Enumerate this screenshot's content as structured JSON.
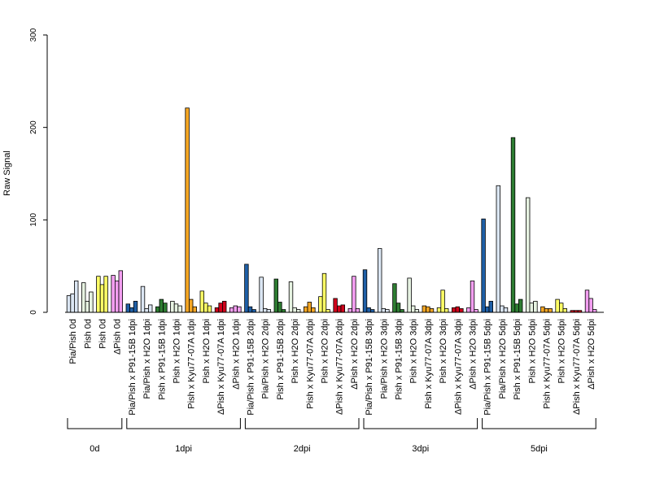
{
  "chart_data": {
    "type": "bar",
    "ylabel": "Raw Signal",
    "ylim": [
      0,
      300
    ],
    "yticks": [
      0,
      100,
      200,
      300
    ],
    "bars_per_category": 3,
    "categories": [
      {
        "label": "Pia/Pish 0d",
        "values": [
          18,
          20,
          34
        ],
        "colors": [
          "#dbe6f3",
          "#dbe6f3",
          "#dbe6f3"
        ]
      },
      {
        "label": "Pish 0d",
        "values": [
          32,
          12,
          22
        ],
        "colors": [
          "#e6f2e1",
          "#e6f2e1",
          "#e6f2e1"
        ]
      },
      {
        "label": "Pish 0d",
        "values": [
          39,
          30,
          39
        ],
        "colors": [
          "#ffff66",
          "#ffff66",
          "#ffff66"
        ]
      },
      {
        "label": "ΔPish 0d",
        "values": [
          40,
          34,
          45
        ],
        "colors": [
          "#f29ef0",
          "#f29ef0",
          "#f29ef0"
        ]
      },
      {
        "label": "Pia/Pish x P91-15B 1dpi",
        "values": [
          9,
          5,
          12
        ],
        "colors": [
          "#1f5fa6",
          "#1f5fa6",
          "#1f5fa6"
        ]
      },
      {
        "label": "Pia/Pish x H2O 1dpi",
        "values": [
          28,
          4,
          8
        ],
        "colors": [
          "#dbe6f3",
          "#dbe6f3",
          "#dbe6f3"
        ]
      },
      {
        "label": "Pish x P91-15B 1dpi",
        "values": [
          6,
          14,
          10
        ],
        "colors": [
          "#2e7d32",
          "#2e7d32",
          "#2e7d32"
        ]
      },
      {
        "label": "Pish x H2O 1dpi",
        "values": [
          12,
          9,
          7
        ],
        "colors": [
          "#e6f2e1",
          "#e6f2e1",
          "#e6f2e1"
        ]
      },
      {
        "label": "Pish x Kyu77-07A 1dpi",
        "values": [
          221,
          14,
          6
        ],
        "colors": [
          "#f5a623",
          "#f5a623",
          "#f5a623"
        ]
      },
      {
        "label": "Pish x H2O 1dpi",
        "values": [
          23,
          10,
          7
        ],
        "colors": [
          "#ffff66",
          "#ffff66",
          "#ffff66"
        ]
      },
      {
        "label": "ΔPish x Kyu77-07A 1dpi",
        "values": [
          5,
          10,
          12
        ],
        "colors": [
          "#d0021b",
          "#d0021b",
          "#d0021b"
        ]
      },
      {
        "label": "ΔPish x H2O 1dpi",
        "values": [
          5,
          7,
          6
        ],
        "colors": [
          "#f29ef0",
          "#f29ef0",
          "#f29ef0"
        ]
      },
      {
        "label": "Pia/Pish x P91-15B 2dpi",
        "values": [
          52,
          6,
          3
        ],
        "colors": [
          "#1f5fa6",
          "#1f5fa6",
          "#1f5fa6"
        ]
      },
      {
        "label": "Pia/Pish x H2O 2dpi",
        "values": [
          38,
          4,
          3
        ],
        "colors": [
          "#dbe6f3",
          "#dbe6f3",
          "#dbe6f3"
        ]
      },
      {
        "label": "Pish x P91-15B 2dpi",
        "values": [
          36,
          11,
          3
        ],
        "colors": [
          "#2e7d32",
          "#2e7d32",
          "#2e7d32"
        ]
      },
      {
        "label": "Pish x H2O 2dpi",
        "values": [
          33,
          5,
          3
        ],
        "colors": [
          "#e6f2e1",
          "#e6f2e1",
          "#e6f2e1"
        ]
      },
      {
        "label": "Pish x Kyu77-07A 2dpi",
        "values": [
          6,
          11,
          5
        ],
        "colors": [
          "#f5a623",
          "#f5a623",
          "#f5a623"
        ]
      },
      {
        "label": "Pish x H2O 2dpi",
        "values": [
          17,
          42,
          3
        ],
        "colors": [
          "#ffff66",
          "#ffff66",
          "#ffff66"
        ]
      },
      {
        "label": "ΔPish x Kyu77-07A 2dpi",
        "values": [
          15,
          7,
          8
        ],
        "colors": [
          "#d0021b",
          "#d0021b",
          "#d0021b"
        ]
      },
      {
        "label": "ΔPish x H2O 2dpi",
        "values": [
          4,
          39,
          4
        ],
        "colors": [
          "#f29ef0",
          "#f29ef0",
          "#f29ef0"
        ]
      },
      {
        "label": "Pia/Pish x P91-15B 3dpi",
        "values": [
          46,
          5,
          3
        ],
        "colors": [
          "#1f5fa6",
          "#1f5fa6",
          "#1f5fa6"
        ]
      },
      {
        "label": "Pia/Pish x H2O 3dpi",
        "values": [
          69,
          4,
          3
        ],
        "colors": [
          "#dbe6f3",
          "#dbe6f3",
          "#dbe6f3"
        ]
      },
      {
        "label": "Pish x P91-15B 3dpi",
        "values": [
          31,
          10,
          3
        ],
        "colors": [
          "#2e7d32",
          "#2e7d32",
          "#2e7d32"
        ]
      },
      {
        "label": "Pish x H2O 3dpi",
        "values": [
          37,
          7,
          3
        ],
        "colors": [
          "#e6f2e1",
          "#e6f2e1",
          "#e6f2e1"
        ]
      },
      {
        "label": "Pish x Kyu77-07A 3dpi",
        "values": [
          7,
          6,
          4
        ],
        "colors": [
          "#f5a623",
          "#f5a623",
          "#f5a623"
        ]
      },
      {
        "label": "Pish x H2O 3dpi",
        "values": [
          5,
          24,
          4
        ],
        "colors": [
          "#ffff66",
          "#ffff66",
          "#ffff66"
        ]
      },
      {
        "label": "ΔPish x Kyu77-07A 3dpi",
        "values": [
          5,
          6,
          4
        ],
        "colors": [
          "#d0021b",
          "#d0021b",
          "#d0021b"
        ]
      },
      {
        "label": "ΔPish x H2O 3dpi",
        "values": [
          5,
          34,
          3
        ],
        "colors": [
          "#f29ef0",
          "#f29ef0",
          "#f29ef0"
        ]
      },
      {
        "label": "Pia/Pish x P91-15B 5dpi",
        "values": [
          101,
          6,
          12
        ],
        "colors": [
          "#1f5fa6",
          "#1f5fa6",
          "#1f5fa6"
        ]
      },
      {
        "label": "Pia/Pish x H2O 5dpi",
        "values": [
          137,
          7,
          5
        ],
        "colors": [
          "#dbe6f3",
          "#dbe6f3",
          "#dbe6f3"
        ]
      },
      {
        "label": "Pish x P91-15B 5dpi",
        "values": [
          189,
          9,
          14
        ],
        "colors": [
          "#2e7d32",
          "#2e7d32",
          "#2e7d32"
        ]
      },
      {
        "label": "Pish x H2O 5dpi",
        "values": [
          124,
          10,
          12
        ],
        "colors": [
          "#e6f2e1",
          "#e6f2e1",
          "#e6f2e1"
        ]
      },
      {
        "label": "Pish x Kyu77-07A 5dpi",
        "values": [
          6,
          4,
          4
        ],
        "colors": [
          "#f5a623",
          "#f5a623",
          "#f5a623"
        ]
      },
      {
        "label": "Pish x H2O 5dpi",
        "values": [
          14,
          10,
          4
        ],
        "colors": [
          "#ffff66",
          "#ffff66",
          "#ffff66"
        ]
      },
      {
        "label": "ΔPish x Kyu77-07A 5dpi",
        "values": [
          2,
          2,
          2
        ],
        "colors": [
          "#d0021b",
          "#d0021b",
          "#d0021b"
        ]
      },
      {
        "label": "ΔPish x H2O 5dpi",
        "values": [
          24,
          15,
          3
        ],
        "colors": [
          "#f29ef0",
          "#f29ef0",
          "#f29ef0"
        ]
      }
    ],
    "groups": [
      {
        "label": "0d",
        "from": 0,
        "to": 3
      },
      {
        "label": "1dpi",
        "from": 4,
        "to": 11
      },
      {
        "label": "2dpi",
        "from": 12,
        "to": 19
      },
      {
        "label": "3dpi",
        "from": 20,
        "to": 27
      },
      {
        "label": "5dpi",
        "from": 28,
        "to": 35
      }
    ],
    "grid": false,
    "legend": "none"
  }
}
